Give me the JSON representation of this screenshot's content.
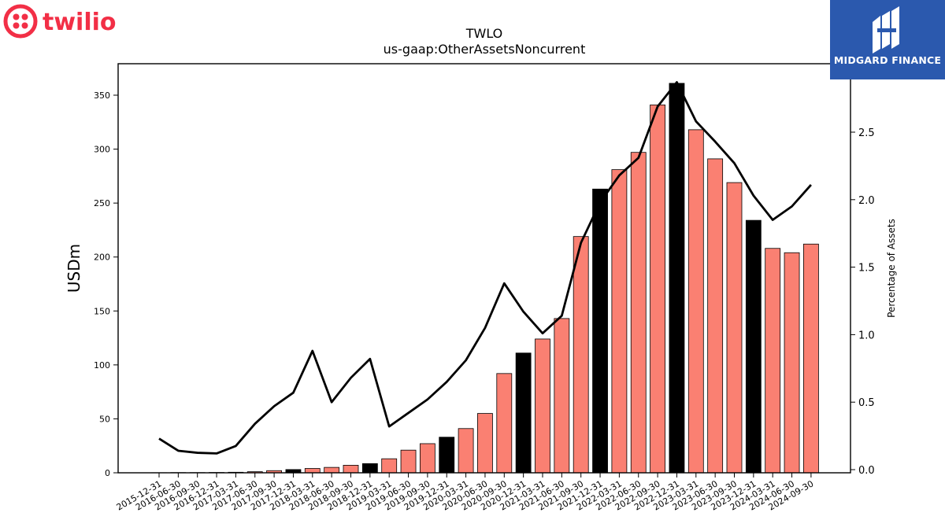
{
  "brand": {
    "left_logo_text": "twilio",
    "left_logo_color": "#f22f46",
    "right_logo_text": "MIDGARD FINANCE",
    "right_logo_bg": "#2b59ae"
  },
  "chart_data": {
    "type": "bar",
    "title": "TWLO",
    "subtitle": "us-gaap:OtherAssetsNoncurrent",
    "ylabel": "USDm",
    "y2label": "Percentage of Assets",
    "ylim": [
      0,
      380
    ],
    "y2lim": [
      0,
      3.0
    ],
    "yticks": [
      0,
      50,
      100,
      150,
      200,
      250,
      300,
      350
    ],
    "y2ticks": [
      0.0,
      0.5,
      1.0,
      1.5,
      2.0,
      2.5
    ],
    "bar_color": "#fa8072",
    "highlight_color": "#000000",
    "line_color": "#000000",
    "categories": [
      "2015-12-31",
      "2016-06-30",
      "2016-09-30",
      "2016-12-31",
      "2017-03-31",
      "2017-06-30",
      "2017-09-30",
      "2017-12-31",
      "2018-03-31",
      "2018-06-30",
      "2018-09-30",
      "2018-12-31",
      "2019-03-31",
      "2019-06-30",
      "2019-09-30",
      "2019-12-31",
      "2020-03-31",
      "2020-06-30",
      "2020-09-30",
      "2020-12-31",
      "2021-03-31",
      "2021-06-30",
      "2021-09-30",
      "2021-12-31",
      "2022-03-31",
      "2022-06-30",
      "2022-09-30",
      "2022-12-31",
      "2023-03-31",
      "2023-06-30",
      "2023-09-30",
      "2023-12-31",
      "2024-03-31",
      "2024-06-30",
      "2024-09-30"
    ],
    "values": [
      0.1,
      0.2,
      0.2,
      0.3,
      0.5,
      1,
      2,
      3,
      4,
      5,
      7,
      8.5,
      13,
      21,
      27,
      33,
      41,
      55,
      92,
      111,
      124,
      143,
      219,
      263,
      281,
      297,
      341,
      361,
      318,
      291,
      269,
      234,
      208,
      204,
      212
    ],
    "highlight": [
      false,
      false,
      false,
      false,
      false,
      false,
      false,
      true,
      false,
      false,
      false,
      true,
      false,
      false,
      false,
      true,
      false,
      false,
      false,
      true,
      false,
      false,
      false,
      true,
      false,
      false,
      false,
      true,
      false,
      false,
      false,
      true,
      false,
      false,
      false
    ],
    "percent_of_assets": [
      0.23,
      0.14,
      0.125,
      0.12,
      0.175,
      0.34,
      0.47,
      0.57,
      0.88,
      0.5,
      0.68,
      0.82,
      0.32,
      0.42,
      0.52,
      0.65,
      0.81,
      1.05,
      1.38,
      1.17,
      1.01,
      1.14,
      1.68,
      1.98,
      2.18,
      2.31,
      2.69,
      2.87,
      2.58,
      2.43,
      2.27,
      2.03,
      1.85,
      1.95,
      2.11
    ]
  }
}
